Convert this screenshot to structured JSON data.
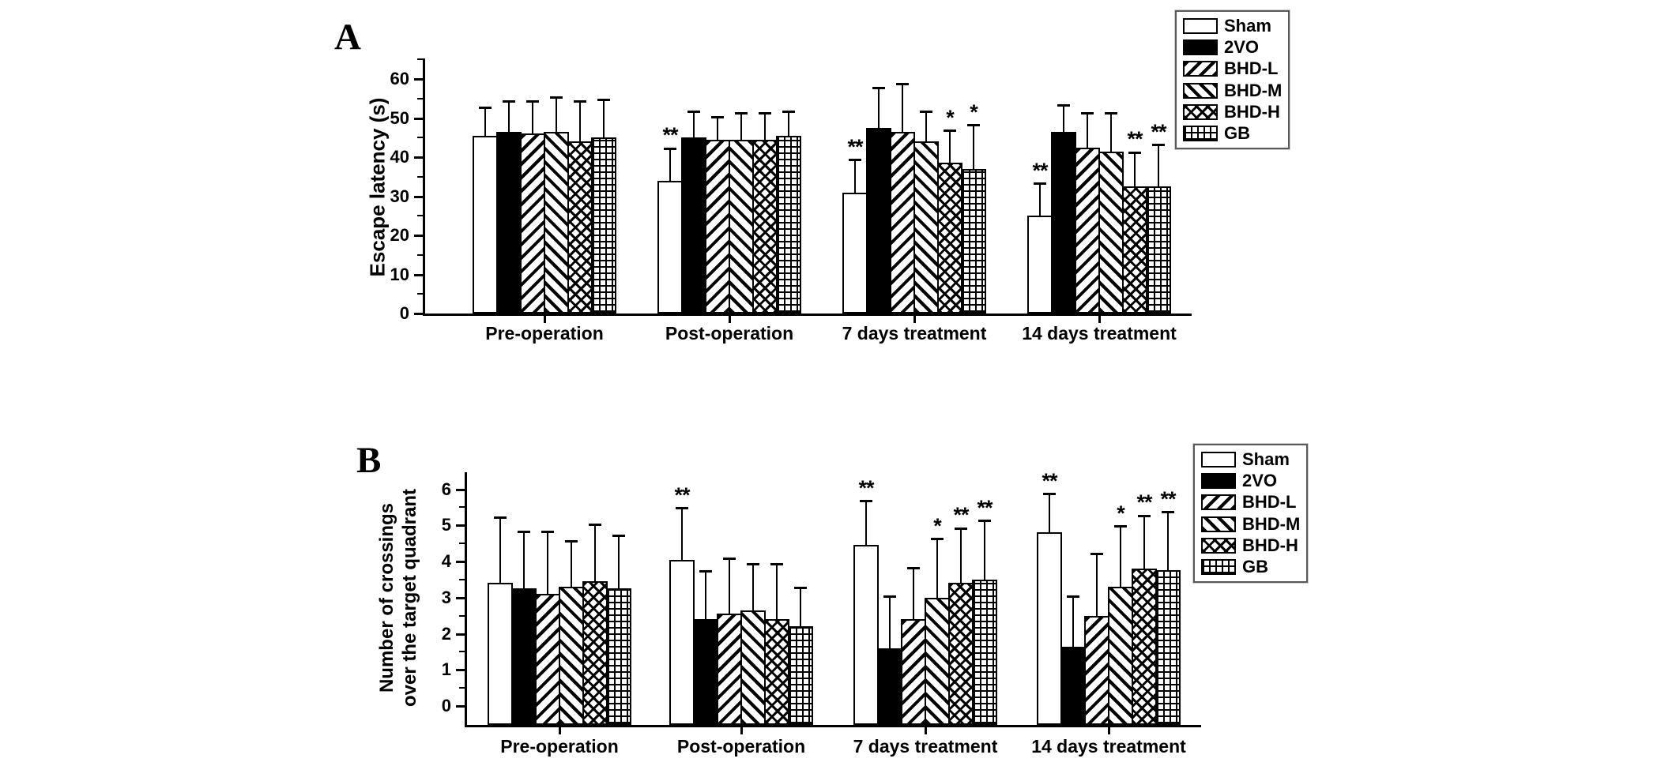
{
  "figure": {
    "background": "#ffffff",
    "ink_color": "#000000",
    "panels": [
      {
        "label": "A"
      },
      {
        "label": "B"
      }
    ]
  },
  "chart_data": [
    {
      "type": "bar",
      "panel": "A",
      "title": "",
      "xlabel": "",
      "ylabel": "Escape latency (s)",
      "ylabel_lines": [
        "Escape latency (s)"
      ],
      "ylim": [
        0,
        60
      ],
      "yticks": [
        0,
        10,
        20,
        30,
        40,
        50,
        60
      ],
      "grid": false,
      "error_bars": true,
      "legend_position": "top-right-outside",
      "categories": [
        "Pre-operation",
        "Post-operation",
        "7 days treatment",
        "14 days treatment"
      ],
      "series": [
        {
          "name": "Sham",
          "pattern": "solid-white",
          "values": [
            45.5,
            34.0,
            31.0,
            25.0
          ],
          "errors": [
            7.5,
            8.5,
            8.5,
            8.5
          ],
          "sig": [
            "",
            "**",
            "**",
            "**"
          ]
        },
        {
          "name": "2VO",
          "pattern": "solid-black",
          "values": [
            46.5,
            45.0,
            47.5,
            46.5
          ],
          "errors": [
            8.0,
            7.0,
            10.5,
            7.0
          ],
          "sig": [
            "",
            "",
            "",
            ""
          ]
        },
        {
          "name": "BHD-L",
          "pattern": "hatch-forward",
          "values": [
            46.0,
            44.5,
            46.5,
            42.5
          ],
          "errors": [
            8.5,
            6.0,
            12.5,
            9.0
          ],
          "sig": [
            "",
            "",
            "",
            ""
          ]
        },
        {
          "name": "BHD-M",
          "pattern": "hatch-backward",
          "values": [
            46.5,
            44.5,
            44.0,
            41.5
          ],
          "errors": [
            9.0,
            7.0,
            8.0,
            10.0
          ],
          "sig": [
            "",
            "",
            "",
            ""
          ]
        },
        {
          "name": "BHD-H",
          "pattern": "crosshatch-diamond",
          "values": [
            44.0,
            44.5,
            38.5,
            32.5
          ],
          "errors": [
            10.5,
            7.0,
            8.5,
            9.0
          ],
          "sig": [
            "",
            "",
            "*",
            "**"
          ]
        },
        {
          "name": "GB",
          "pattern": "grid",
          "values": [
            45.0,
            45.5,
            37.0,
            32.5
          ],
          "errors": [
            10.0,
            6.5,
            11.5,
            11.0
          ],
          "sig": [
            "",
            "",
            "*",
            "**"
          ]
        }
      ]
    },
    {
      "type": "bar",
      "panel": "B",
      "title": "",
      "xlabel": "",
      "ylabel": "Number of crossings over the target quadrant",
      "ylabel_lines": [
        "Number of crossings",
        "over the target quadrant"
      ],
      "ylim": [
        0,
        6
      ],
      "yticks": [
        0,
        1,
        2,
        3,
        4,
        5,
        6
      ],
      "grid": false,
      "error_bars": true,
      "legend_position": "top-right-outside",
      "categories": [
        "Pre-operation",
        "Post-operation",
        "7 days treatment",
        "14 days treatment"
      ],
      "series": [
        {
          "name": "Sham",
          "pattern": "solid-white",
          "values": [
            3.4,
            4.05,
            4.45,
            4.8
          ],
          "errors": [
            1.85,
            1.45,
            1.25,
            1.1
          ],
          "sig": [
            "",
            "**",
            "**",
            "**"
          ]
        },
        {
          "name": "2VO",
          "pattern": "solid-black",
          "values": [
            3.25,
            2.4,
            1.6,
            1.65
          ],
          "errors": [
            1.6,
            1.35,
            1.45,
            1.4
          ],
          "sig": [
            "",
            "",
            "",
            ""
          ]
        },
        {
          "name": "BHD-L",
          "pattern": "hatch-forward",
          "values": [
            3.1,
            2.55,
            2.4,
            2.5
          ],
          "errors": [
            1.75,
            1.55,
            1.45,
            1.75
          ],
          "sig": [
            "",
            "",
            "",
            ""
          ]
        },
        {
          "name": "BHD-M",
          "pattern": "hatch-backward",
          "values": [
            3.3,
            2.65,
            3.0,
            3.3
          ],
          "errors": [
            1.3,
            1.3,
            1.65,
            1.7
          ],
          "sig": [
            "",
            "",
            "*",
            "*"
          ]
        },
        {
          "name": "BHD-H",
          "pattern": "crosshatch-diamond",
          "values": [
            3.45,
            2.4,
            3.4,
            3.8
          ],
          "errors": [
            1.6,
            1.55,
            1.55,
            1.5
          ],
          "sig": [
            "",
            "",
            "**",
            "**"
          ]
        },
        {
          "name": "GB",
          "pattern": "grid",
          "values": [
            3.25,
            2.2,
            3.5,
            3.75
          ],
          "errors": [
            1.5,
            1.1,
            1.65,
            1.65
          ],
          "sig": [
            "",
            "",
            "**",
            "**"
          ]
        }
      ]
    }
  ]
}
